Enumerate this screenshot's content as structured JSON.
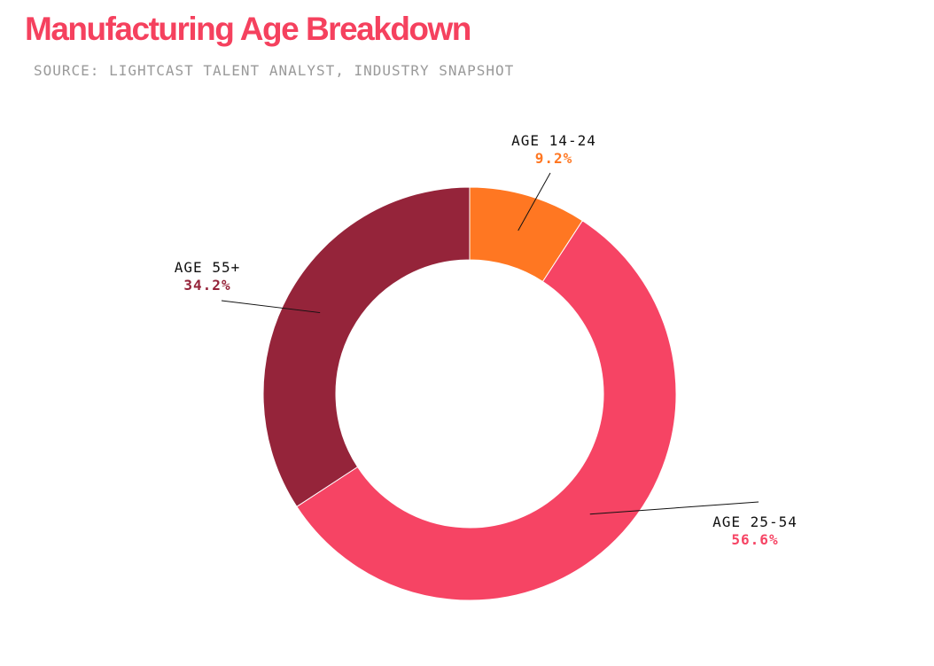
{
  "header": {
    "title": "Manufacturing Age Breakdown",
    "subtitle": "SOURCE: LIGHTCAST TALENT ANALYST, INDUSTRY SNAPSHOT"
  },
  "chart_data": {
    "type": "pie",
    "title": "Manufacturing Age Breakdown",
    "subtitle": "SOURCE: LIGHTCAST TALENT ANALYST, INDUSTRY SNAPSHOT",
    "series": [
      {
        "name": "AGE 14-24",
        "value": 9.2,
        "label": "9.2%",
        "color": "#ff7722",
        "label_color": "#ff7722"
      },
      {
        "name": "AGE 25-54",
        "value": 56.6,
        "label": "56.6%",
        "color": "#f64464",
        "label_color": "#f64464"
      },
      {
        "name": "AGE 55+",
        "value": 34.2,
        "label": "34.2%",
        "color": "#95243a",
        "label_color": "#95243a"
      }
    ],
    "legend": "none"
  }
}
